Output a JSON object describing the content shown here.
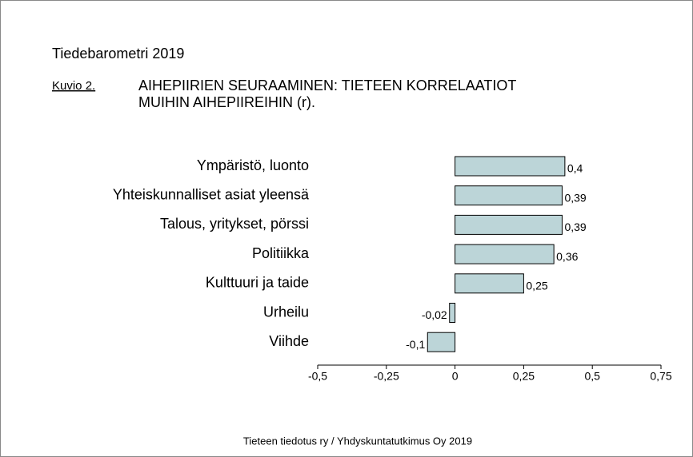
{
  "chart_data": {
    "type": "bar",
    "orientation": "horizontal",
    "header": "Tiedebarometri 2019",
    "figure_label": "Kuvio 2.",
    "title": [
      "AIHEPIIRIEN SEURAAMINEN: TIETEEN KORRELAATIOT",
      "MUIHIN AIHEPIIREIHIN (r)."
    ],
    "categories": [
      "Ympäristö, luonto",
      "Yhteiskunnalliset asiat yleensä",
      "Talous, yritykset, pörssi",
      "Politiikka",
      "Kulttuuri ja taide",
      "Urheilu",
      "Viihde"
    ],
    "values": [
      0.4,
      0.39,
      0.39,
      0.36,
      0.25,
      -0.02,
      -0.1
    ],
    "value_labels": [
      "0,4",
      "0,39",
      "0,39",
      "0,36",
      "0,25",
      "-0,02",
      "-0,1"
    ],
    "color": "#bcd5d8",
    "xlim": [
      -0.5,
      0.75
    ],
    "xticks": [
      {
        "value": -0.5,
        "label": "-0,5"
      },
      {
        "value": -0.25,
        "label": "-0,25"
      },
      0,
      {
        "value": 0.25,
        "label": "0,25"
      },
      {
        "value": 0.5,
        "label": "0,5"
      },
      {
        "value": 0.75,
        "label": "0,75"
      }
    ],
    "source": "Tieteen tiedotus ry / Yhdyskuntatutkimus Oy 2019"
  }
}
